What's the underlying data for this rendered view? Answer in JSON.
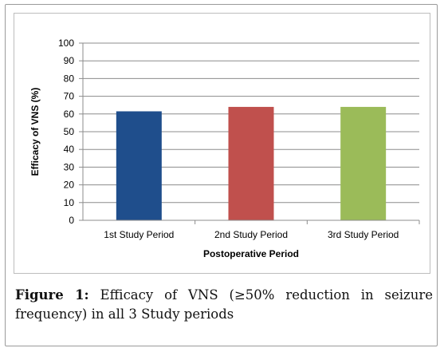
{
  "caption": {
    "label": "Figure 1:",
    "text": " Efficacy of VNS (≥50% reduction in seizure frequency) in all 3 Study periods"
  },
  "chart_data": {
    "type": "bar",
    "categories": [
      "1st Study Period",
      "2nd Study Period",
      "3rd Study Period"
    ],
    "values": [
      61.5,
      64,
      64
    ],
    "colors": [
      "#1f4e8c",
      "#c0504d",
      "#9bbb59"
    ],
    "xlabel": "Postoperative Period",
    "ylabel": "Efficacy of VNS (%)",
    "ylim": [
      0,
      100
    ],
    "yticks": [
      "0",
      "10",
      "20",
      "30",
      "40",
      "50",
      "60",
      "70",
      "80",
      "90",
      "100"
    ],
    "grid": true,
    "legend": "none"
  }
}
